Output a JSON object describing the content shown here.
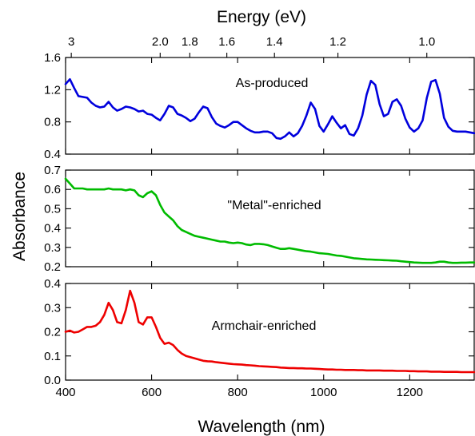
{
  "chart_data": {
    "type": "line",
    "top_axis": {
      "label": "Energy (eV)",
      "ticks": [
        {
          "value": 3,
          "label": "3"
        },
        {
          "value": 2.0,
          "label": "2.0"
        },
        {
          "value": 1.8,
          "label": "1.8"
        },
        {
          "value": 1.6,
          "label": "1.6"
        },
        {
          "value": 1.4,
          "label": "1.4"
        },
        {
          "value": 1.2,
          "label": "1.2"
        },
        {
          "value": 1.0,
          "label": "1.0"
        }
      ]
    },
    "xlabel": "Wavelength (nm)",
    "ylabel": "Absorbance",
    "xlim": [
      400,
      1350
    ],
    "xticks": [
      400,
      600,
      800,
      1000,
      1200
    ],
    "panels": [
      {
        "label": "As-produced",
        "color": "#0000dd",
        "ylim": [
          0.4,
          1.6
        ],
        "yticks": [
          "0.4",
          "0.8",
          "1.2",
          "1.6"
        ],
        "x": [
          400,
          410,
          420,
          430,
          440,
          450,
          460,
          470,
          480,
          490,
          500,
          510,
          520,
          530,
          540,
          550,
          560,
          570,
          580,
          590,
          600,
          610,
          620,
          630,
          640,
          650,
          660,
          670,
          680,
          690,
          700,
          710,
          720,
          730,
          740,
          750,
          760,
          770,
          780,
          790,
          800,
          810,
          820,
          830,
          840,
          850,
          860,
          870,
          880,
          890,
          900,
          910,
          920,
          930,
          940,
          950,
          960,
          970,
          980,
          990,
          1000,
          1010,
          1020,
          1030,
          1040,
          1050,
          1060,
          1070,
          1080,
          1090,
          1100,
          1110,
          1120,
          1130,
          1140,
          1150,
          1160,
          1170,
          1180,
          1190,
          1200,
          1210,
          1220,
          1230,
          1240,
          1250,
          1260,
          1270,
          1280,
          1290,
          1300,
          1310,
          1320,
          1330,
          1340,
          1350
        ],
        "y": [
          1.27,
          1.33,
          1.22,
          1.12,
          1.11,
          1.1,
          1.04,
          1.0,
          0.98,
          0.99,
          1.05,
          0.98,
          0.94,
          0.96,
          0.99,
          0.98,
          0.96,
          0.93,
          0.94,
          0.9,
          0.89,
          0.85,
          0.82,
          0.9,
          1.0,
          0.98,
          0.9,
          0.88,
          0.85,
          0.81,
          0.84,
          0.92,
          0.99,
          0.97,
          0.86,
          0.78,
          0.75,
          0.73,
          0.76,
          0.8,
          0.8,
          0.76,
          0.72,
          0.69,
          0.67,
          0.67,
          0.68,
          0.68,
          0.66,
          0.6,
          0.59,
          0.62,
          0.67,
          0.62,
          0.66,
          0.75,
          0.88,
          1.04,
          0.96,
          0.75,
          0.68,
          0.77,
          0.87,
          0.79,
          0.72,
          0.76,
          0.65,
          0.63,
          0.72,
          0.88,
          1.14,
          1.31,
          1.26,
          1.02,
          0.87,
          0.9,
          1.05,
          1.08,
          1.0,
          0.84,
          0.73,
          0.68,
          0.72,
          0.82,
          1.1,
          1.3,
          1.32,
          1.15,
          0.85,
          0.74,
          0.69,
          0.68,
          0.68,
          0.68,
          0.67,
          0.66
        ]
      },
      {
        "label": "\"Metal\"-enriched",
        "color": "#00bb00",
        "ylim": [
          0.2,
          0.7
        ],
        "yticks": [
          "0.2",
          "0.3",
          "0.4",
          "0.5",
          "0.6",
          "0.7"
        ],
        "x": [
          400,
          410,
          420,
          430,
          440,
          450,
          460,
          470,
          480,
          490,
          500,
          510,
          520,
          530,
          540,
          550,
          560,
          570,
          580,
          590,
          600,
          610,
          620,
          630,
          640,
          650,
          660,
          670,
          680,
          690,
          700,
          710,
          720,
          730,
          740,
          750,
          760,
          770,
          780,
          790,
          800,
          810,
          820,
          830,
          840,
          850,
          860,
          870,
          880,
          890,
          900,
          910,
          920,
          930,
          940,
          950,
          960,
          970,
          980,
          990,
          1000,
          1010,
          1020,
          1030,
          1040,
          1050,
          1060,
          1070,
          1080,
          1090,
          1100,
          1110,
          1120,
          1130,
          1140,
          1150,
          1160,
          1170,
          1180,
          1190,
          1200,
          1210,
          1220,
          1230,
          1240,
          1250,
          1260,
          1270,
          1280,
          1290,
          1300,
          1310,
          1320,
          1330,
          1340,
          1350
        ],
        "y": [
          0.655,
          0.63,
          0.605,
          0.605,
          0.605,
          0.6,
          0.6,
          0.6,
          0.6,
          0.6,
          0.605,
          0.6,
          0.6,
          0.6,
          0.595,
          0.6,
          0.595,
          0.57,
          0.56,
          0.58,
          0.59,
          0.57,
          0.52,
          0.48,
          0.46,
          0.44,
          0.41,
          0.39,
          0.38,
          0.37,
          0.36,
          0.355,
          0.35,
          0.345,
          0.34,
          0.335,
          0.33,
          0.33,
          0.325,
          0.322,
          0.325,
          0.322,
          0.315,
          0.312,
          0.318,
          0.318,
          0.316,
          0.312,
          0.305,
          0.298,
          0.292,
          0.292,
          0.296,
          0.292,
          0.288,
          0.284,
          0.28,
          0.278,
          0.274,
          0.27,
          0.268,
          0.266,
          0.262,
          0.258,
          0.256,
          0.252,
          0.248,
          0.244,
          0.242,
          0.24,
          0.238,
          0.237,
          0.236,
          0.235,
          0.234,
          0.233,
          0.232,
          0.231,
          0.228,
          0.226,
          0.224,
          0.222,
          0.221,
          0.22,
          0.22,
          0.22,
          0.222,
          0.226,
          0.226,
          0.222,
          0.22,
          0.22,
          0.221,
          0.221,
          0.222,
          0.222
        ]
      },
      {
        "label": "Armchair-enriched",
        "color": "#ee0000",
        "ylim": [
          0.0,
          0.4
        ],
        "yticks": [
          "0.0",
          "0.1",
          "0.2",
          "0.3",
          "0.4"
        ],
        "x": [
          400,
          410,
          420,
          430,
          440,
          450,
          460,
          470,
          480,
          490,
          500,
          510,
          520,
          530,
          540,
          550,
          560,
          570,
          580,
          590,
          600,
          610,
          620,
          630,
          640,
          650,
          660,
          670,
          680,
          690,
          700,
          710,
          720,
          730,
          740,
          750,
          760,
          770,
          780,
          790,
          800,
          810,
          820,
          830,
          840,
          850,
          860,
          870,
          880,
          890,
          900,
          910,
          920,
          930,
          940,
          950,
          960,
          970,
          980,
          990,
          1000,
          1010,
          1020,
          1030,
          1040,
          1050,
          1060,
          1070,
          1080,
          1090,
          1100,
          1110,
          1120,
          1130,
          1140,
          1150,
          1160,
          1170,
          1180,
          1190,
          1200,
          1210,
          1220,
          1230,
          1240,
          1250,
          1260,
          1270,
          1280,
          1290,
          1300,
          1310,
          1320,
          1330,
          1340,
          1350
        ],
        "y": [
          0.2,
          0.205,
          0.197,
          0.2,
          0.21,
          0.22,
          0.22,
          0.225,
          0.24,
          0.27,
          0.32,
          0.29,
          0.24,
          0.235,
          0.29,
          0.37,
          0.32,
          0.24,
          0.23,
          0.26,
          0.26,
          0.22,
          0.175,
          0.15,
          0.155,
          0.145,
          0.125,
          0.11,
          0.1,
          0.095,
          0.09,
          0.085,
          0.08,
          0.078,
          0.077,
          0.074,
          0.072,
          0.07,
          0.068,
          0.066,
          0.065,
          0.064,
          0.062,
          0.061,
          0.06,
          0.058,
          0.057,
          0.056,
          0.055,
          0.054,
          0.052,
          0.051,
          0.05,
          0.05,
          0.049,
          0.049,
          0.048,
          0.048,
          0.047,
          0.046,
          0.045,
          0.044,
          0.044,
          0.043,
          0.043,
          0.042,
          0.042,
          0.042,
          0.041,
          0.041,
          0.04,
          0.04,
          0.04,
          0.04,
          0.039,
          0.039,
          0.039,
          0.038,
          0.038,
          0.038,
          0.037,
          0.037,
          0.036,
          0.036,
          0.036,
          0.035,
          0.035,
          0.035,
          0.034,
          0.034,
          0.034,
          0.034,
          0.033,
          0.033,
          0.033,
          0.033
        ]
      }
    ],
    "grid": false,
    "legend": "none"
  }
}
